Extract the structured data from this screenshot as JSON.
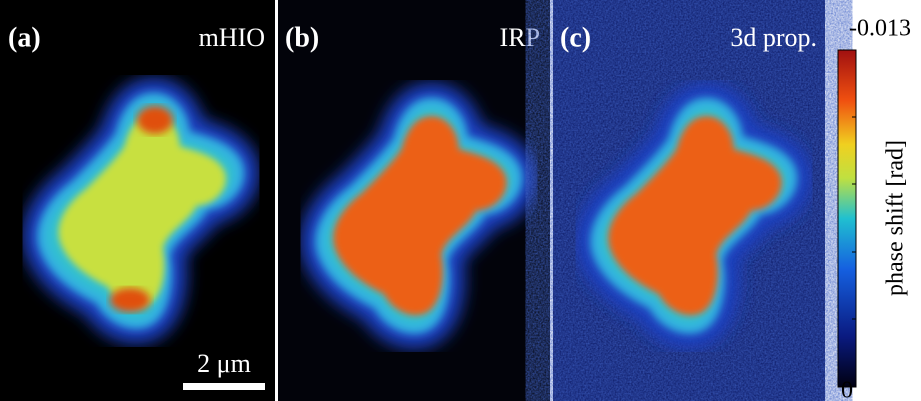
{
  "panels": [
    {
      "label": "(a)",
      "method": "mHIO"
    },
    {
      "label": "(b)",
      "method": "IRP"
    },
    {
      "label": "(c)",
      "method": "3d prop."
    }
  ],
  "scale_bar": "2 μm",
  "colorbar": {
    "title": "phase shift [rad]",
    "top_label": "-0.013",
    "bottom_label": "0"
  }
}
